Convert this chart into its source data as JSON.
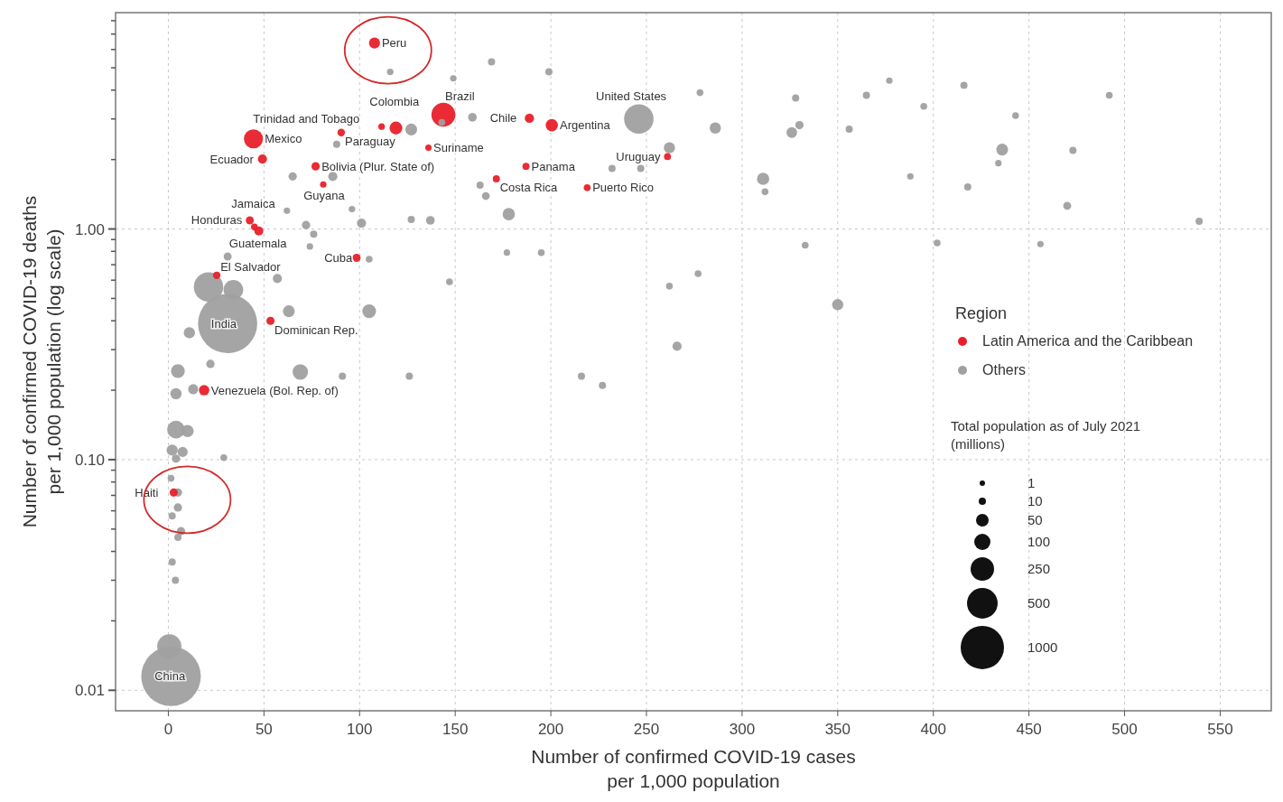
{
  "chart_data": {
    "type": "bubble",
    "xlabel": "Number of confirmed COVID-19 cases per 1,000 population",
    "ylabel": "Number of confirmed COVID-19 deaths per 1,000 population (log scale)",
    "legend_title": "Region",
    "log": "y",
    "grid": true,
    "legend": "right",
    "marker": "circle",
    "xlim": [
      -27.6,
      576.7
    ],
    "xticks": [
      0,
      50,
      100,
      150,
      200,
      250,
      300,
      350,
      400,
      450,
      500,
      550
    ],
    "ylim": [
      0.00815,
      8.67
    ],
    "yticks": [
      {
        "value": 0.01,
        "label": "0.01"
      },
      {
        "value": 0.02,
        "label": null
      },
      {
        "value": 0.03,
        "label": null
      },
      {
        "value": 0.04,
        "label": null
      },
      {
        "value": 0.05,
        "label": null
      },
      {
        "value": 0.06,
        "label": null
      },
      {
        "value": 0.07,
        "label": null
      },
      {
        "value": 0.08,
        "label": null
      },
      {
        "value": 0.09,
        "label": null
      },
      {
        "value": 0.1,
        "label": "0.10"
      },
      {
        "value": 0.2,
        "label": null
      },
      {
        "value": 0.3,
        "label": null
      },
      {
        "value": 0.4,
        "label": null
      },
      {
        "value": 0.5,
        "label": null
      },
      {
        "value": 0.6,
        "label": null
      },
      {
        "value": 0.7,
        "label": null
      },
      {
        "value": 0.8,
        "label": null
      },
      {
        "value": 0.9,
        "label": null
      },
      {
        "value": 1,
        "label": "1.00"
      },
      {
        "value": 2,
        "label": null
      },
      {
        "value": 3,
        "label": null
      },
      {
        "value": 4,
        "label": null
      },
      {
        "value": 5,
        "label": null
      },
      {
        "value": 6,
        "label": null
      },
      {
        "value": 7,
        "label": null
      },
      {
        "value": 8,
        "label": null
      }
    ],
    "size_legend": [
      {
        "value": 0.0083,
        "label": "1"
      },
      {
        "value": 0.0147,
        "label": "10"
      },
      {
        "value": 0.045,
        "label": "50"
      },
      {
        "value": 0.074,
        "label": "100"
      },
      {
        "value": 0.155,
        "label": "250"
      },
      {
        "value": 0.265,
        "label": "500"
      },
      {
        "value": 0.529,
        "label": "1000"
      }
    ],
    "series": [
      {
        "name": "Others",
        "color": "#a0a0a0",
        "x": [
          116,
          149,
          169,
          199,
          278,
          328,
          365,
          377,
          416,
          395,
          443,
          492,
          159,
          143,
          127,
          262,
          286,
          330,
          326,
          356,
          436,
          434,
          473,
          232,
          247,
          311,
          312,
          388,
          418,
          470,
          539,
          163,
          166,
          178,
          62,
          72,
          76,
          74,
          101,
          96,
          127,
          137,
          31,
          57,
          105,
          147,
          177,
          195,
          333,
          402,
          456,
          262,
          277,
          350,
          266,
          105,
          63,
          69,
          91,
          126,
          216,
          227,
          65,
          86,
          88,
          21,
          34,
          11,
          5,
          22,
          4,
          13,
          4,
          10,
          2,
          7.5,
          4,
          29,
          1.4,
          5,
          5,
          2,
          6.6,
          5,
          2,
          3.7,
          0.5,
          1.4,
          31,
          246
        ],
        "values": [
          4.8,
          4.5,
          5.3,
          4.8,
          3.9,
          3.7,
          3.8,
          4.4,
          4.2,
          3.4,
          3.1,
          3.8,
          3.05,
          2.9,
          2.7,
          2.25,
          2.74,
          2.82,
          2.62,
          2.71,
          2.21,
          1.93,
          2.19,
          1.83,
          1.83,
          1.65,
          1.45,
          1.69,
          1.52,
          1.26,
          1.08,
          1.55,
          1.39,
          1.16,
          1.2,
          1.04,
          0.95,
          0.84,
          1.06,
          1.22,
          1.1,
          1.09,
          0.76,
          0.61,
          0.74,
          0.59,
          0.79,
          0.79,
          0.85,
          0.87,
          0.86,
          0.565,
          0.64,
          0.47,
          0.31,
          0.44,
          0.44,
          0.24,
          0.23,
          0.23,
          0.23,
          0.21,
          1.69,
          1.69,
          2.33,
          0.56,
          0.545,
          0.355,
          0.242,
          0.26,
          0.193,
          0.202,
          0.135,
          0.133,
          0.11,
          0.108,
          0.101,
          0.102,
          0.083,
          0.072,
          0.062,
          0.057,
          0.049,
          0.046,
          0.036,
          0.03,
          0.0155,
          0.0115,
          0.389,
          3.0
        ],
        "sizes": [
          0.0125,
          0.0118,
          0.0146,
          0.0146,
          0.0132,
          0.0146,
          0.0146,
          0.0118,
          0.0146,
          0.0132,
          0.0132,
          0.0132,
          0.0216,
          0.0132,
          0.0392,
          0.0356,
          0.0356,
          0.0195,
          0.0321,
          0.0146,
          0.0392,
          0.0118,
          0.0146,
          0.0146,
          0.0146,
          0.0427,
          0.0132,
          0.0118,
          0.0146,
          0.0181,
          0.0146,
          0.0146,
          0.0174,
          0.0427,
          0.0117,
          0.0195,
          0.0146,
          0.0118,
          0.0237,
          0.0118,
          0.0146,
          0.0216,
          0.0181,
          0.0237,
          0.0132,
          0.0132,
          0.0118,
          0.0132,
          0.0132,
          0.0132,
          0.0118,
          0.0132,
          0.0132,
          0.0356,
          0.0237,
          0.0532,
          0.0392,
          0.0672,
          0.0146,
          0.0146,
          0.0146,
          0.0146,
          0.0195,
          0.0237,
          0.0146,
          0.2424,
          0.1092,
          0.0356,
          0.0532,
          0.0195,
          0.0356,
          0.0286,
          0.0882,
          0.0427,
          0.0356,
          0.0286,
          0.0195,
          0.0132,
          0.0132,
          0.0195,
          0.0195,
          0.0146,
          0.0195,
          0.0146,
          0.0146,
          0.0146,
          0.1653,
          1,
          0.987,
          0.2438
        ]
      },
      {
        "name": "Latin America and the Caribbean",
        "color": "#e8202a",
        "x": [
          107.8,
          44.5,
          49.2,
          111.5,
          90.4,
          119,
          143.8,
          136,
          188.8,
          200.5,
          77,
          81,
          187,
          171.5,
          219,
          261,
          42.6,
          47.3,
          45,
          98.4,
          25.3,
          53.4,
          18.7,
          2.8
        ],
        "values": [
          6.4,
          2.46,
          2.01,
          2.78,
          2.62,
          2.74,
          3.13,
          2.25,
          3.02,
          2.82,
          1.87,
          1.56,
          1.87,
          1.65,
          1.51,
          2.06,
          1.09,
          0.98,
          1.02,
          0.75,
          0.63,
          0.4,
          0.2,
          0.072
        ],
        "sizes": [
          0.0342,
          0.1022,
          0.0237,
          0.0121,
          0.016,
          0.047,
          0.161,
          0.0115,
          0.0244,
          0.0427,
          0.0195,
          0.0117,
          0.0142,
          0.0146,
          0.0134,
          0.0136,
          0.0181,
          0.023,
          0.0132,
          0.0188,
          0.0157,
          0.0188,
          0.0307,
          0.0192
        ]
      }
    ],
    "annotations": [
      {
        "text": "Peru",
        "x": 107.8,
        "y": 6.4
      },
      {
        "text": "Haiti",
        "x": 2.8,
        "y": 0.072
      },
      {
        "text": "Mexico",
        "x": 44.5,
        "y": 2.46
      },
      {
        "text": "Ecuador",
        "x": 49.2,
        "y": 2.01
      },
      {
        "text": "Trinidad and Tobago",
        "x": 111.5,
        "y": 2.78
      },
      {
        "text": "Paraguay",
        "x": 90.4,
        "y": 2.62
      },
      {
        "text": "Colombia",
        "x": 119,
        "y": 2.74
      },
      {
        "text": "Brazil",
        "x": 143.8,
        "y": 3.13
      },
      {
        "text": "Suriname",
        "x": 136,
        "y": 2.25
      },
      {
        "text": "Chile",
        "x": 188.8,
        "y": 3.02
      },
      {
        "text": "Argentina",
        "x": 200.5,
        "y": 2.82
      },
      {
        "text": "United States",
        "x": 246,
        "y": 3.0
      },
      {
        "text": "Bolivia (Plur. State of)",
        "x": 77,
        "y": 1.87
      },
      {
        "text": "Guyana",
        "x": 81,
        "y": 1.56
      },
      {
        "text": "Panama",
        "x": 187,
        "y": 1.87
      },
      {
        "text": "Costa Rica",
        "x": 171.5,
        "y": 1.65
      },
      {
        "text": "Puerto Rico",
        "x": 219,
        "y": 1.51
      },
      {
        "text": "Uruguay",
        "x": 261,
        "y": 2.06
      },
      {
        "text": "Honduras",
        "x": 42.6,
        "y": 1.09
      },
      {
        "text": "Guatemala",
        "x": 47.3,
        "y": 0.98
      },
      {
        "text": "Jamaica",
        "x": 45,
        "y": 1.02
      },
      {
        "text": "Cuba",
        "x": 98.4,
        "y": 0.75
      },
      {
        "text": "El Salvador",
        "x": 25.3,
        "y": 0.63
      },
      {
        "text": "Dominican Rep.",
        "x": 53.4,
        "y": 0.4
      },
      {
        "text": "India",
        "x": 31,
        "y": 0.389
      },
      {
        "text": "Venezuela (Bol. Rep. of)",
        "x": 18.7,
        "y": 0.2
      },
      {
        "text": "China",
        "x": 1.4,
        "y": 0.0115
      },
      "Total population as of July 2021 (millions)"
    ]
  }
}
